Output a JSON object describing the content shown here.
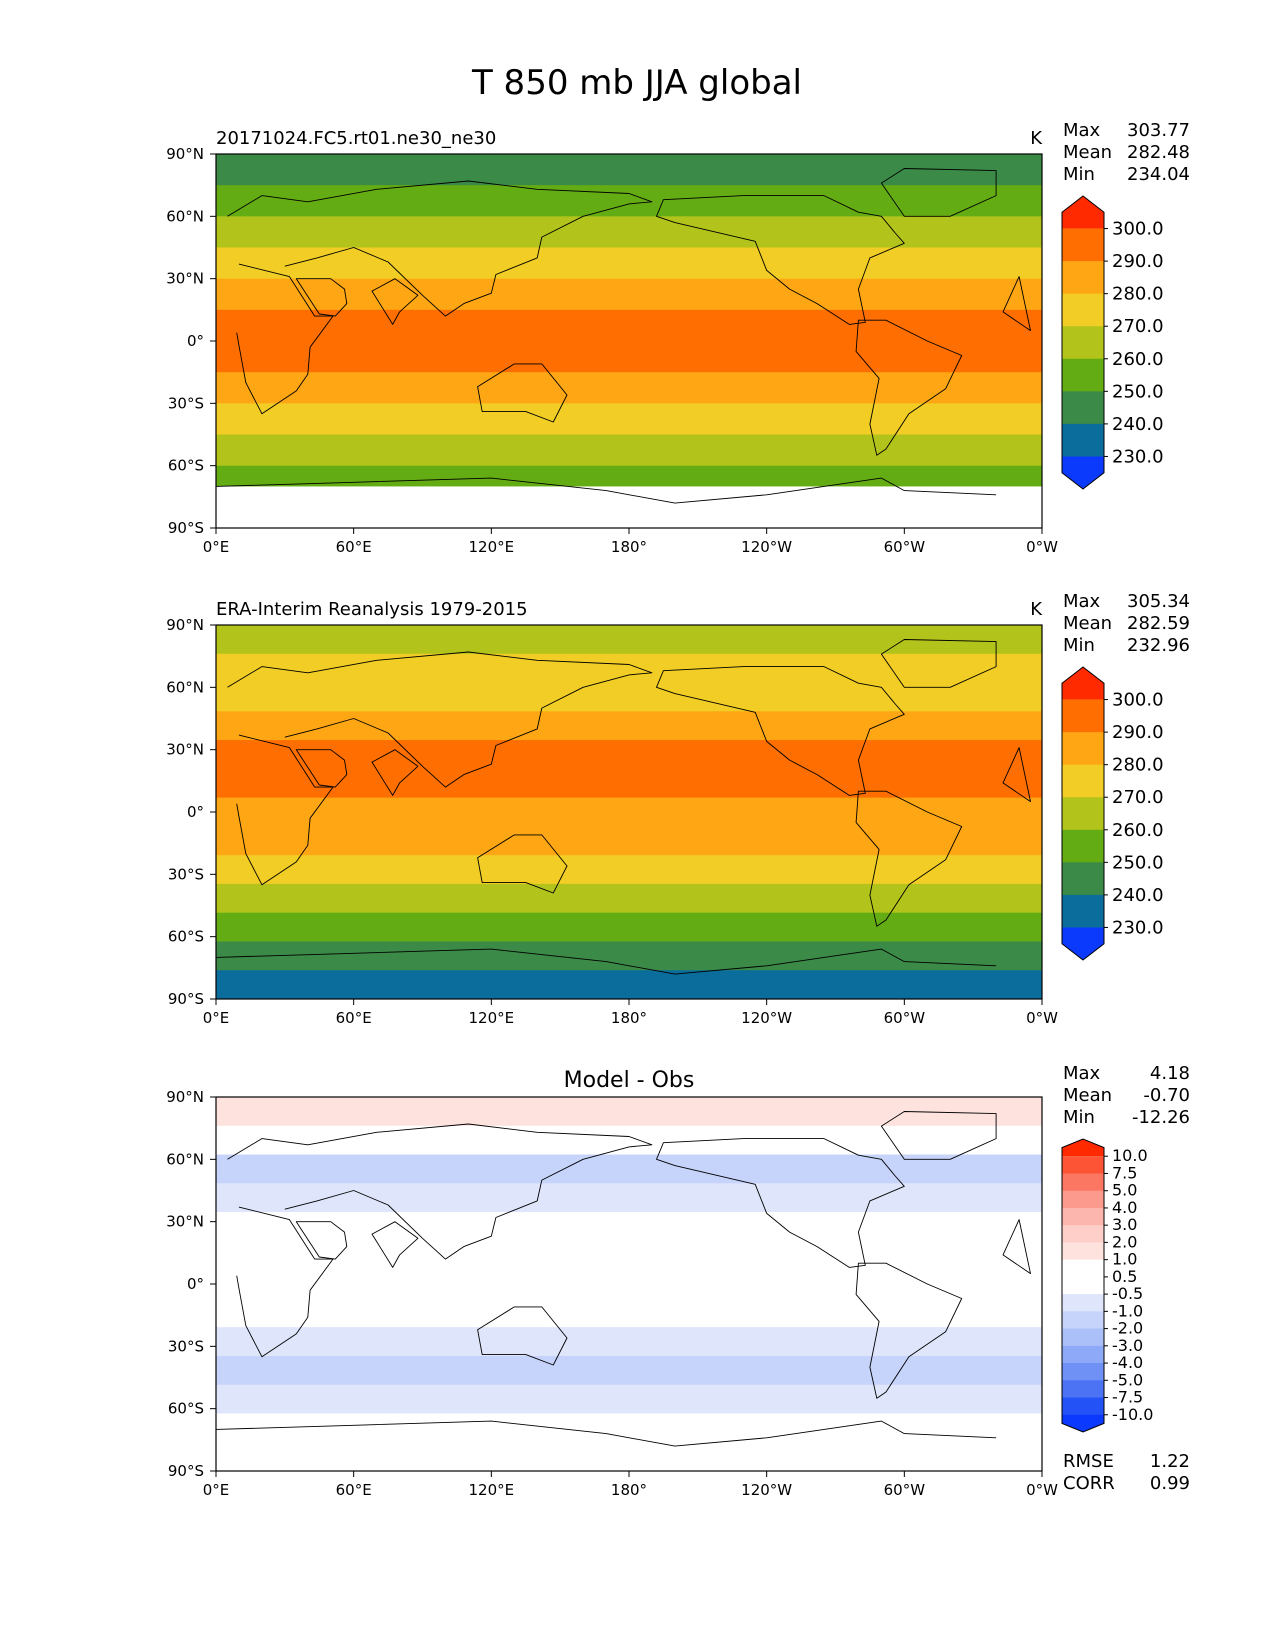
{
  "figure_title": "T 850 mb JJA global",
  "chart_data": [
    {
      "type": "heatmap",
      "panel": "model",
      "title": "20171024.FC5.rt01.ne30_ne30",
      "units": "K",
      "stats": {
        "max_label": "Max",
        "max": "303.77",
        "mean_label": "Mean",
        "mean": "282.48",
        "min_label": "Min",
        "min": "234.04"
      },
      "colorbar_levels": [
        "300.0",
        "290.0",
        "280.0",
        "270.0",
        "260.0",
        "250.0",
        "240.0",
        "230.0"
      ],
      "colorbar_colors": [
        "#ff2a00",
        "#ff6e00",
        "#fea614",
        "#f1cd25",
        "#b2c41b",
        "#64ac14",
        "#3b8a47",
        "#0b6d9b",
        "#0c3afd"
      ],
      "band_colors": [
        "#3b8a47",
        "#64ac14",
        "#b2c41b",
        "#f1cd25",
        "#fea614",
        "#ff6e00",
        "#ff6e00",
        "#fea614",
        "#f1cd25",
        "#b2c41b",
        "#64ac14",
        "#3b8a47"
      ],
      "xticks": [
        "0°E",
        "60°E",
        "120°E",
        "180°",
        "120°W",
        "60°W",
        "0°W"
      ],
      "yticks": [
        "90°N",
        "60°N",
        "30°N",
        "0°",
        "30°S",
        "60°S",
        "90°S"
      ]
    },
    {
      "type": "heatmap",
      "panel": "observation",
      "title": "ERA-Interim Reanalysis 1979-2015",
      "units": "K",
      "stats": {
        "max_label": "Max",
        "max": "305.34",
        "mean_label": "Mean",
        "mean": "282.59",
        "min_label": "Min",
        "min": "232.96"
      },
      "colorbar_levels": [
        "300.0",
        "290.0",
        "280.0",
        "270.0",
        "260.0",
        "250.0",
        "240.0",
        "230.0"
      ],
      "colorbar_colors": [
        "#ff2a00",
        "#ff6e00",
        "#fea614",
        "#f1cd25",
        "#b2c41b",
        "#64ac14",
        "#3b8a47",
        "#0b6d9b",
        "#0c3afd"
      ],
      "band_colors": [
        "#b2c41b",
        "#f1cd25",
        "#f1cd25",
        "#fea614",
        "#ff6e00",
        "#ff6e00",
        "#fea614",
        "#fea614",
        "#f1cd25",
        "#b2c41b",
        "#64ac14",
        "#3b8a47",
        "#0b6d9b"
      ],
      "xticks": [
        "0°E",
        "60°E",
        "120°E",
        "180°",
        "120°W",
        "60°W",
        "0°W"
      ],
      "yticks": [
        "90°N",
        "60°N",
        "30°N",
        "0°",
        "30°S",
        "60°S",
        "90°S"
      ]
    },
    {
      "type": "heatmap",
      "panel": "difference",
      "title": "Model - Obs",
      "stats": {
        "max_label": "Max",
        "max": "4.18",
        "mean_label": "Mean",
        "mean": "-0.70",
        "min_label": "Min",
        "min": "-12.26"
      },
      "colorbar_levels": [
        "10.0",
        "7.5",
        "5.0",
        "4.0",
        "3.0",
        "2.0",
        "1.0",
        "0.5",
        "-0.5",
        "-1.0",
        "-2.0",
        "-3.0",
        "-4.0",
        "-5.0",
        "-7.5",
        "-10.0"
      ],
      "colorbar_colors": [
        "#ff2a00",
        "#fc5434",
        "#fb7762",
        "#fb9a8d",
        "#fcb6ad",
        "#fdcfc8",
        "#fee2de",
        "#ffffff",
        "#ffffff",
        "#dfe6fb",
        "#c6d3fa",
        "#abbff9",
        "#8ea9f7",
        "#6f90f5",
        "#4b73f4",
        "#2353f6",
        "#0b3afe"
      ],
      "band_colors": [
        "#fee2de",
        "#ffffff",
        "#c6d3fa",
        "#dfe6fb",
        "#ffffff",
        "#ffffff",
        "#ffffff",
        "#ffffff",
        "#dfe6fb",
        "#c6d3fa",
        "#dfe6fb",
        "#ffffff",
        "#ffffff"
      ],
      "metrics": {
        "rmse_label": "RMSE",
        "rmse": "1.22",
        "corr_label": "CORR",
        "corr": "0.99"
      },
      "xticks": [
        "0°E",
        "60°E",
        "120°E",
        "180°",
        "120°W",
        "60°W",
        "0°W"
      ],
      "yticks": [
        "90°N",
        "60°N",
        "30°N",
        "0°",
        "30°S",
        "60°S",
        "90°S"
      ]
    }
  ]
}
